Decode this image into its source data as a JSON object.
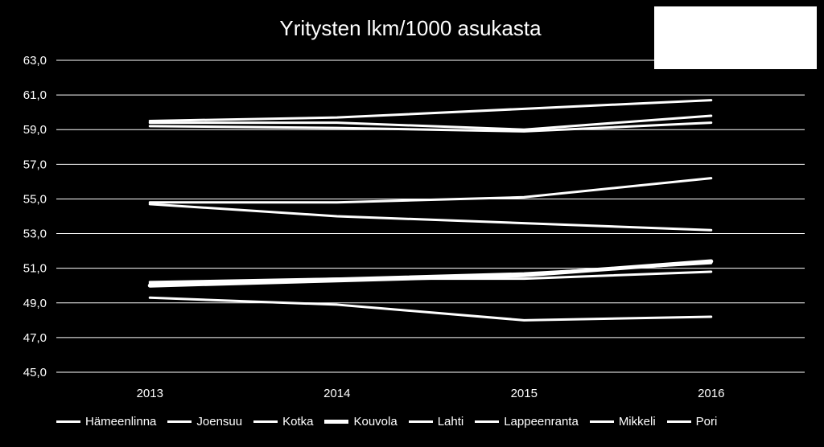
{
  "chart_data": {
    "type": "line",
    "title": "Yritysten lkm/1000 asukasta",
    "categories": [
      "2013",
      "2014",
      "2015",
      "2016"
    ],
    "ylim": [
      45.0,
      63.0
    ],
    "yticks": [
      "63,0",
      "61,0",
      "59,0",
      "57,0",
      "55,0",
      "53,0",
      "51,0",
      "49,0",
      "47,0",
      "45,0"
    ],
    "grid": true,
    "legend_position": "bottom",
    "line_color": "#ffffff",
    "series": [
      {
        "name": "Hämeenlinna",
        "values": [
          50.1,
          50.4,
          50.7,
          51.3
        ],
        "width": 3
      },
      {
        "name": "Joensuu",
        "values": [
          59.5,
          59.7,
          60.2,
          60.7
        ],
        "width": 3
      },
      {
        "name": "Kotka",
        "values": [
          49.3,
          48.9,
          48.0,
          48.2
        ],
        "width": 3
      },
      {
        "name": "Kouvola",
        "values": [
          50.0,
          50.3,
          50.6,
          51.4
        ],
        "width": 5
      },
      {
        "name": "Lahti",
        "values": [
          54.7,
          54.0,
          53.6,
          53.2
        ],
        "width": 3
      },
      {
        "name": "Lappeenranta",
        "values": [
          54.8,
          54.8,
          55.1,
          56.2
        ],
        "width": 3
      },
      {
        "name": "Mikkeli",
        "values": [
          59.2,
          59.1,
          58.9,
          59.4
        ],
        "width": 3
      },
      {
        "name": "Pori",
        "values": [
          59.4,
          59.4,
          59.0,
          59.8
        ],
        "width": 3
      },
      {
        "name": "",
        "values": [
          50.2,
          50.4,
          50.4,
          50.8
        ],
        "width": 3
      }
    ]
  }
}
